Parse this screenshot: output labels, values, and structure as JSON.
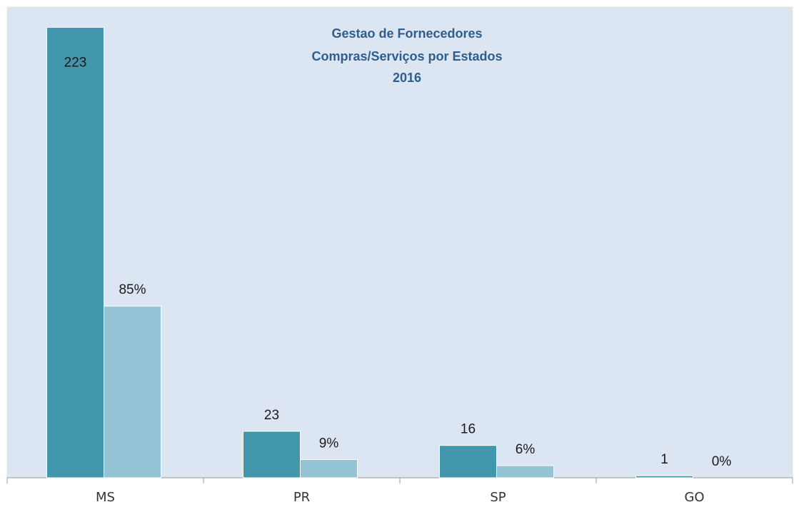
{
  "chart_data": {
    "type": "bar",
    "title": [
      "Gestao de Fornecedores",
      "Compras/Serviços  por Estados",
      "2016"
    ],
    "categories": [
      "MS",
      "PR",
      "SP",
      "GO"
    ],
    "series": [
      {
        "color": "#4397ad",
        "values": [
          223,
          23,
          16,
          1
        ]
      },
      {
        "color": "#93c3d5",
        "values": [
          85,
          9,
          6,
          0
        ],
        "value_labels": [
          "85%",
          "9%",
          "6%",
          "0%"
        ]
      }
    ],
    "ylim": [
      0,
      233
    ]
  }
}
